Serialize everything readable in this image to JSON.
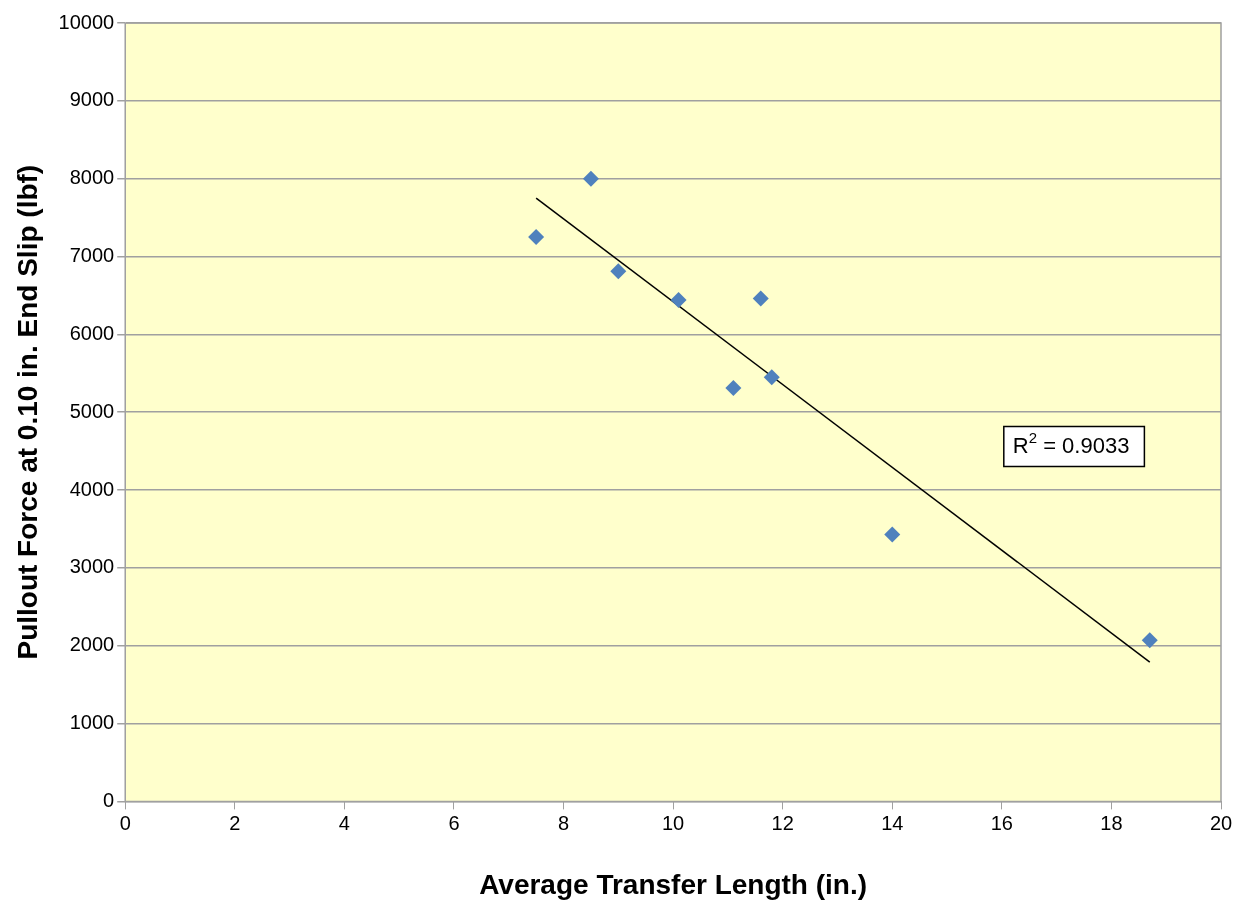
{
  "chart_data": {
    "type": "scatter",
    "xlabel": "Average Transfer Length (in.)",
    "ylabel": "Pullout Force at 0.10 in. End Slip (lbf)",
    "x": [
      7.5,
      8.5,
      9.0,
      10.1,
      11.6,
      11.1,
      11.8,
      14.0,
      18.7
    ],
    "series": [
      {
        "type": "scatter",
        "color": "#4f81bd",
        "marker": "diamond",
        "values": [
          7250,
          8000,
          6810,
          6440,
          6460,
          5310,
          5450,
          3430,
          2070
        ]
      },
      {
        "type": "line",
        "color": "#000000",
        "marker": "none",
        "x": [
          7.5,
          18.7
        ],
        "values": [
          7750,
          1790
        ]
      }
    ],
    "xlim": [
      0,
      20
    ],
    "xticks": [
      0,
      2,
      4,
      6,
      8,
      10,
      12,
      14,
      16,
      18,
      20
    ],
    "ylim": [
      0,
      10000
    ],
    "yticks": [
      0,
      1000,
      2000,
      3000,
      4000,
      5000,
      6000,
      7000,
      8000,
      9000,
      10000
    ],
    "grid": "y",
    "legend": false,
    "annotations": [
      "R$^{2}$ = 0.9033"
    ]
  }
}
